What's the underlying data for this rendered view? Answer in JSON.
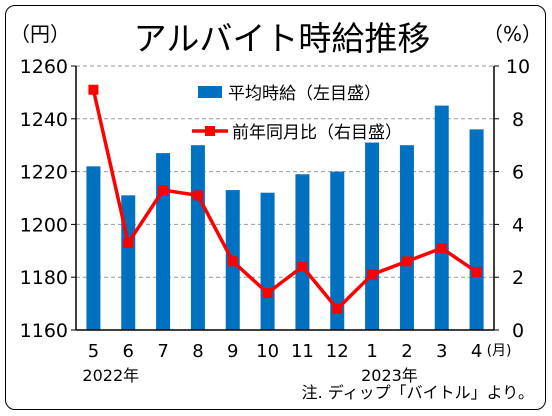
{
  "chart_data": {
    "type": "bar+line",
    "title": "アルバイト時給推移",
    "left_unit": "（円）",
    "right_unit": "（%）",
    "x_unit": "(月)",
    "categories": [
      "5",
      "6",
      "7",
      "8",
      "9",
      "10",
      "11",
      "12",
      "1",
      "2",
      "3",
      "4"
    ],
    "year_labels": [
      {
        "text": "2022年",
        "at_category": "5"
      },
      {
        "text": "2023年",
        "at_category": "1"
      }
    ],
    "left_axis": {
      "min": 1160,
      "max": 1260,
      "ticks": [
        1160,
        1180,
        1200,
        1220,
        1240,
        1260
      ]
    },
    "right_axis": {
      "min": 0,
      "max": 10,
      "ticks": [
        0,
        2,
        4,
        6,
        8,
        10
      ]
    },
    "series": [
      {
        "name": "平均時給（左目盛）",
        "type": "bar",
        "axis": "left",
        "color": "#0070c0",
        "values": [
          1222,
          1211,
          1227,
          1230,
          1213,
          1212,
          1219,
          1220,
          1231,
          1230,
          1245,
          1236
        ]
      },
      {
        "name": "前年同月比（右目盛）",
        "type": "line",
        "axis": "right",
        "color": "#ff0000",
        "values": [
          9.1,
          3.3,
          5.3,
          5.1,
          2.6,
          1.4,
          2.4,
          0.8,
          2.1,
          2.6,
          3.1,
          2.2
        ]
      }
    ],
    "note": "注. ディップ「バイトル」より。",
    "legend_position": "top-center"
  }
}
